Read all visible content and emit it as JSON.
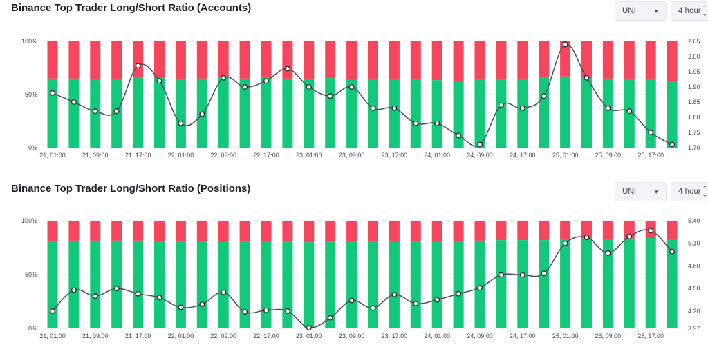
{
  "colors": {
    "long": "#12c97b",
    "short": "#f6465d",
    "line": "#4a4f57",
    "grid": "#e6e8ea"
  },
  "charts": [
    {
      "id": "accounts",
      "title": "Binance Top Trader Long/Short Ratio (Accounts)",
      "symbol_select": {
        "value": "UNI"
      },
      "period_select": {
        "value": "4 hour"
      },
      "chart_data": {
        "type": "bar",
        "title": "Binance Top Trader Long/Short Ratio (Accounts)",
        "x_tick_labels": [
          "21, 01:00",
          "21, 09:00",
          "21, 17:00",
          "22, 01:00",
          "22, 09:00",
          "22, 17:00",
          "23, 01:00",
          "23, 09:00",
          "23, 17:00",
          "24, 01:00",
          "24, 09:00",
          "24, 17:00",
          "25, 01:00",
          "25, 09:00",
          "25, 17:00"
        ],
        "left_axis": {
          "ticks": [
            "0%",
            "50%",
            "100%"
          ],
          "ylim": [
            0,
            100
          ]
        },
        "right_axis": {
          "ticks": [
            "1.70",
            "1.75",
            "1.80",
            "1.85",
            "1.90",
            "1.95",
            "2.00",
            "2.05"
          ],
          "ylim": [
            1.7,
            2.05
          ]
        },
        "long_percent": [
          65,
          65,
          64.5,
          64.5,
          66.5,
          65.5,
          64,
          65,
          66,
          65,
          66.5,
          65,
          64.5,
          65.5,
          64.5,
          64.5,
          64,
          64,
          63.5,
          63,
          64,
          64,
          64.5,
          66,
          67,
          65.5,
          65,
          64.5,
          64.5,
          63
        ],
        "ratio": [
          1.88,
          1.85,
          1.82,
          1.82,
          1.97,
          1.92,
          1.78,
          1.81,
          1.93,
          1.9,
          1.92,
          1.96,
          1.9,
          1.87,
          1.9,
          1.83,
          1.83,
          1.78,
          1.78,
          1.74,
          1.71,
          1.84,
          1.83,
          1.87,
          2.04,
          1.93,
          1.83,
          1.82,
          1.75,
          1.71
        ]
      }
    },
    {
      "id": "positions",
      "title": "Binance Top Trader Long/Short Ratio (Positions)",
      "symbol_select": {
        "value": "UNI"
      },
      "period_select": {
        "value": "4 hour"
      },
      "chart_data": {
        "type": "bar",
        "title": "Binance Top Trader Long/Short Ratio (Positions)",
        "x_tick_labels": [
          "21, 01:00",
          "21, 09:00",
          "21, 17:00",
          "22, 01:00",
          "22, 09:00",
          "22, 17:00",
          "23, 01:00",
          "23, 09:00",
          "23, 17:00",
          "24, 01:00",
          "24, 09:00",
          "24, 17:00",
          "25, 01:00",
          "25, 09:00",
          "25, 17:00"
        ],
        "left_axis": {
          "ticks": [
            "0%",
            "50%",
            "100%"
          ],
          "ylim": [
            0,
            100
          ]
        },
        "right_axis": {
          "ticks": [
            "3.97",
            "4.20",
            "4.50",
            "4.80",
            "5.10",
            "5.40"
          ],
          "ylim": [
            3.97,
            5.4
          ]
        },
        "long_percent": [
          80.5,
          81.5,
          81.5,
          81.5,
          81.5,
          81,
          80.5,
          80.5,
          81,
          80.5,
          80.5,
          80.5,
          80,
          80.5,
          81,
          80.5,
          81,
          80.5,
          81,
          81,
          81.5,
          82,
          82,
          82,
          83,
          83.5,
          83,
          83.5,
          84,
          83
        ],
        "ratio": [
          4.2,
          4.48,
          4.4,
          4.5,
          4.43,
          4.38,
          4.25,
          4.29,
          4.45,
          4.19,
          4.21,
          4.2,
          3.98,
          4.11,
          4.34,
          4.24,
          4.42,
          4.3,
          4.35,
          4.43,
          4.51,
          4.68,
          4.68,
          4.7,
          5.1,
          5.18,
          4.97,
          5.19,
          5.27,
          4.99
        ]
      }
    }
  ]
}
